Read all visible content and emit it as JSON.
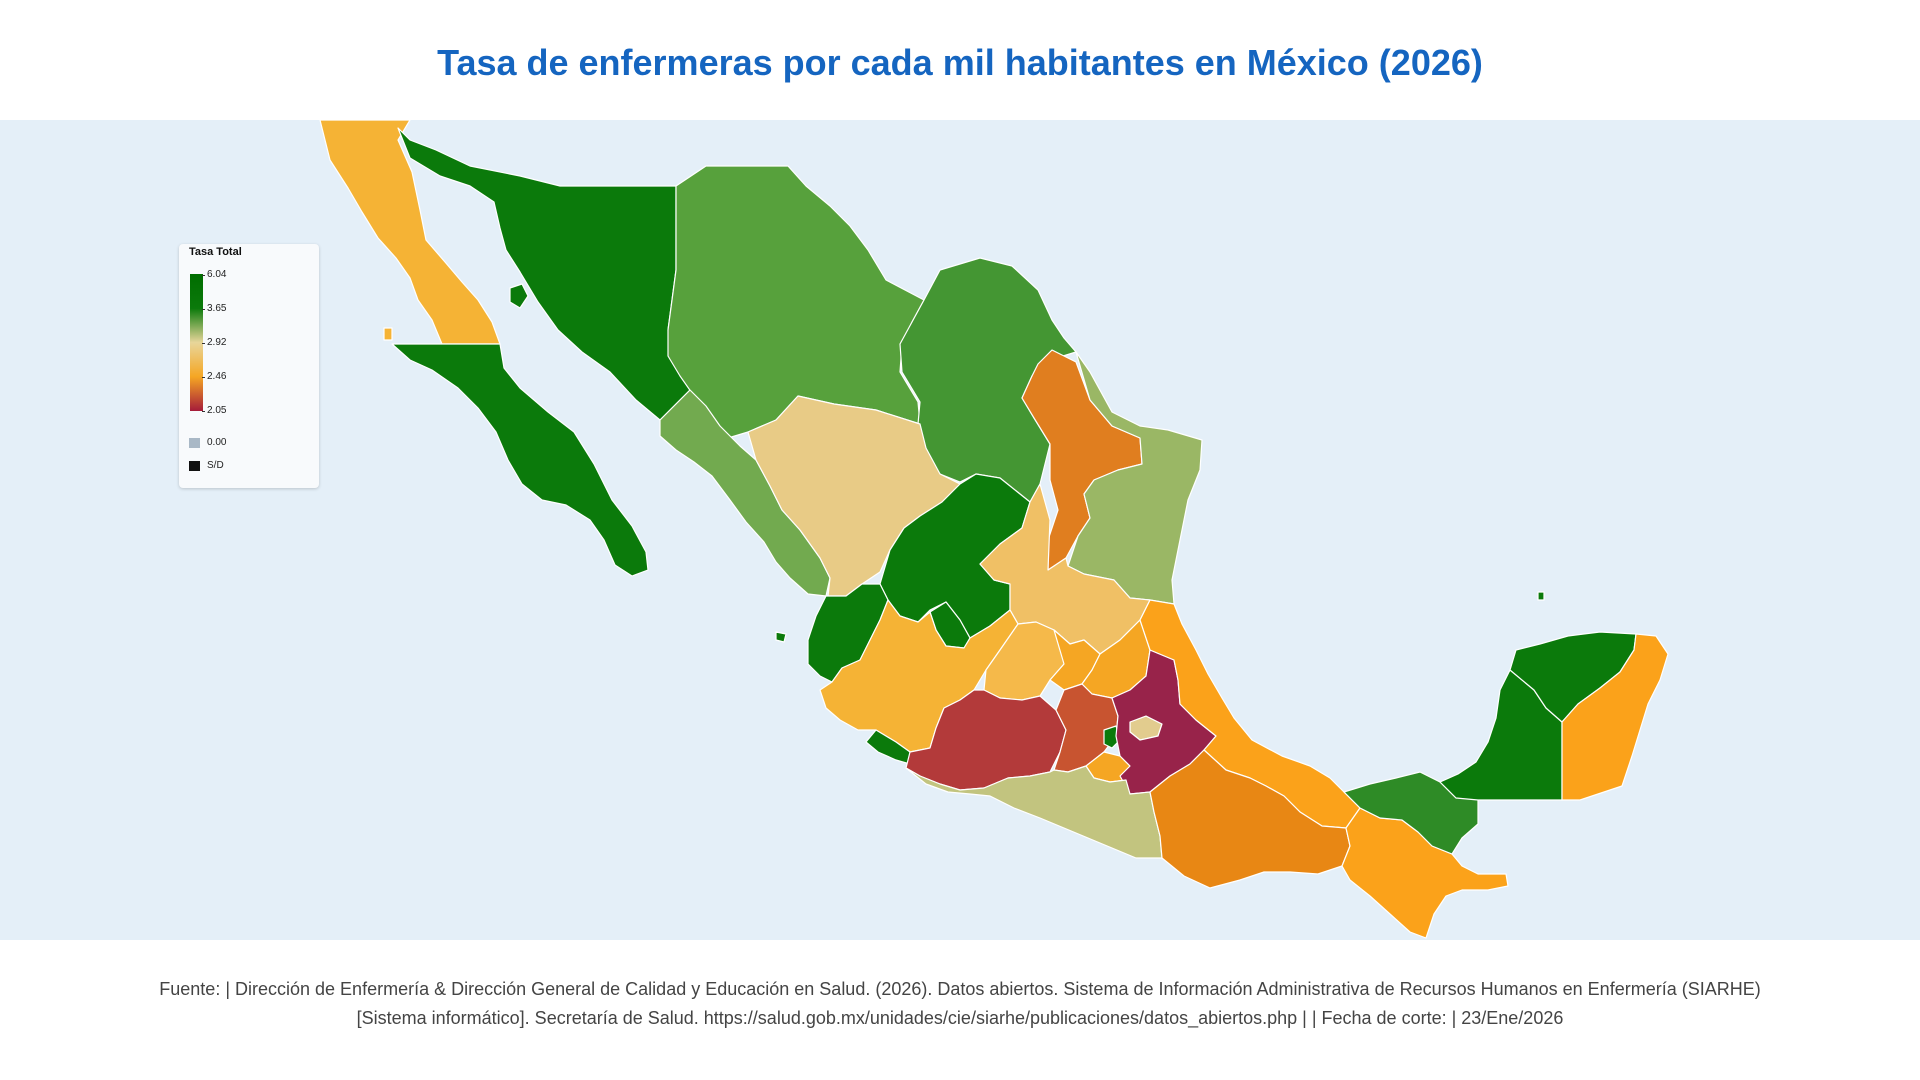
{
  "title": "Tasa de enfermeras por cada mil habitantes en México (2026)",
  "legend": {
    "title": "Tasa Total",
    "ticks": [
      "6.04",
      "3.65",
      "2.92",
      "2.46",
      "2.05"
    ],
    "zero_label": "0.00",
    "nodata_label": "S/D",
    "zero_color": "#a9b8c6",
    "nodata_color": "#111111",
    "gradient_colors": [
      "#006d00",
      "#0b7a0b",
      "#e8d69a",
      "#f5a623",
      "#a51c3a"
    ]
  },
  "colors": {
    "ocean": "#e4eff8",
    "state_border": "#ffffff"
  },
  "states": [
    {
      "name": "Baja California",
      "color": "#f5b335"
    },
    {
      "name": "Baja California Sur",
      "color": "#0b7a0b"
    },
    {
      "name": "Sonora",
      "color": "#0b7a0b"
    },
    {
      "name": "Chihuahua",
      "color": "#57a13c"
    },
    {
      "name": "Coahuila",
      "color": "#449633"
    },
    {
      "name": "Nuevo León",
      "color": "#e07e1f"
    },
    {
      "name": "Tamaulipas",
      "color": "#9ab765"
    },
    {
      "name": "Sinaloa",
      "color": "#72aa4f"
    },
    {
      "name": "Durango",
      "color": "#e8cb86"
    },
    {
      "name": "Zacatecas",
      "color": "#0b7a0b"
    },
    {
      "name": "San Luis Potosí",
      "color": "#f0c065"
    },
    {
      "name": "Nayarit",
      "color": "#0b7a0b"
    },
    {
      "name": "Aguascalientes",
      "color": "#0b7a0b"
    },
    {
      "name": "Jalisco",
      "color": "#f5b335"
    },
    {
      "name": "Colima",
      "color": "#0b7a0b"
    },
    {
      "name": "Guanajuato",
      "color": "#f5b94a"
    },
    {
      "name": "Querétaro",
      "color": "#f5a623"
    },
    {
      "name": "Hidalgo",
      "color": "#f5a623"
    },
    {
      "name": "Michoacán",
      "color": "#b33a3a"
    },
    {
      "name": "Estado de México",
      "color": "#c85430"
    },
    {
      "name": "Ciudad de México",
      "color": "#0b7a0b"
    },
    {
      "name": "Morelos",
      "color": "#f5a623"
    },
    {
      "name": "Tlaxcala",
      "color": "#e2cc8e"
    },
    {
      "name": "Puebla",
      "color": "#98234a"
    },
    {
      "name": "Veracruz",
      "color": "#fba21a"
    },
    {
      "name": "Guerrero",
      "color": "#c2c47f"
    },
    {
      "name": "Oaxaca",
      "color": "#e88714"
    },
    {
      "name": "Chiapas",
      "color": "#fba21a"
    },
    {
      "name": "Tabasco",
      "color": "#2e8b26"
    },
    {
      "name": "Campeche",
      "color": "#0b7a0b"
    },
    {
      "name": "Yucatán",
      "color": "#0b7a0b"
    },
    {
      "name": "Quintana Roo",
      "color": "#fba21a"
    }
  ],
  "footer": {
    "line1": "Fuente: | Dirección de Enfermería & Dirección General de Calidad y Educación en Salud. (2026). Datos abiertos. Sistema de Información Administrativa de Recursos Humanos en Enfermería (SIARHE)",
    "line2": "[Sistema informático]. Secretaría de Salud. https://salud.gob.mx/unidades/cie/siarhe/publicaciones/datos_abiertos.php |  | Fecha de corte: | 23/Ene/2026"
  }
}
